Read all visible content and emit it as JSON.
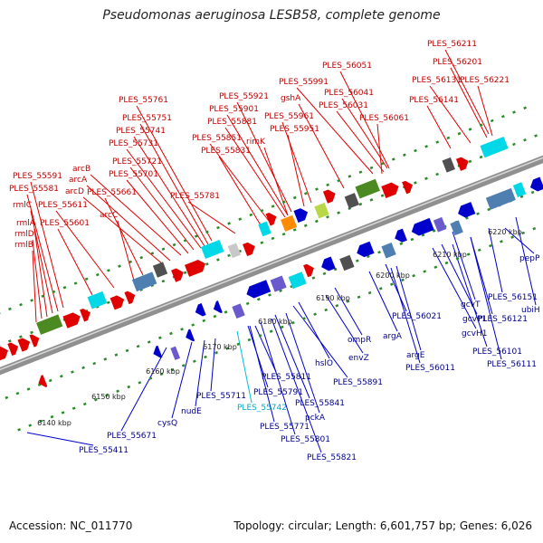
{
  "title": "Pseudomonas aeruginosa LESB58, complete genome",
  "footer": {
    "accession": "Accession: NC_011770",
    "summary": "Topology: circular; Length: 6,601,757 bp; Genes: 6,026"
  },
  "colors": {
    "forward_gene": "#e00000",
    "reverse_gene": "#0000cc",
    "rna_gene": "#00c0e0",
    "backbone": "#909090",
    "tick": "#2a8a2a"
  },
  "ruler": [
    {
      "label": "6140 kbp"
    },
    {
      "label": "6150 kbp"
    },
    {
      "label": "6160 kbp"
    },
    {
      "label": "6170 kbp"
    },
    {
      "label": "6180 kbp"
    },
    {
      "label": "6190 kbp"
    },
    {
      "label": "6200 kbp"
    },
    {
      "label": "6210 kbp"
    },
    {
      "label": "6220 kbp"
    }
  ],
  "forward_labels": [
    "PLES_56211",
    "PLES_56201",
    "PLES_56051",
    "PLES_56131",
    "PLES_56221",
    "PLES_55991",
    "PLES_56041",
    "PLES_56141",
    "gshA",
    "PLES_56031",
    "PLES_55761",
    "PLES_55921",
    "PLES_55901",
    "PLES_56061",
    "PLES_55751",
    "PLES_55881",
    "PLES_55961",
    "PLES_55741",
    "PLES_55951",
    "PLES_55851",
    "rimK",
    "PLES_55731",
    "PLES_55831",
    "PLES_55721",
    "arcB",
    "PLES_55591",
    "PLES_55701",
    "arcA",
    "PLES_55581",
    "arcD",
    "PLES_55661",
    "PLES_55781",
    "rmlC",
    "PLES_55611",
    "arcC",
    "rmlA",
    "PLES_55601",
    "rmlD",
    "rmlB"
  ],
  "reverse_labels": [
    "pepP",
    "PLES_56151",
    "ubiH",
    "gcvT",
    "PLES_56121",
    "gcvP1",
    "gcvH1",
    "PLES_56021",
    "ompR",
    "argA",
    "PLES_56101",
    "PLES_56111",
    "argE",
    "PLES_56011",
    "envZ",
    "hslO",
    "PLES_55891",
    "PLES_55811",
    "PLES_55791",
    "PLES_55841",
    "PLES_55711",
    "PLES_55742",
    "pckA",
    "nudE",
    "PLES_55771",
    "cysQ",
    "PLES_55801",
    "PLES_55821",
    "PLES_55671",
    "PLES_55411"
  ]
}
